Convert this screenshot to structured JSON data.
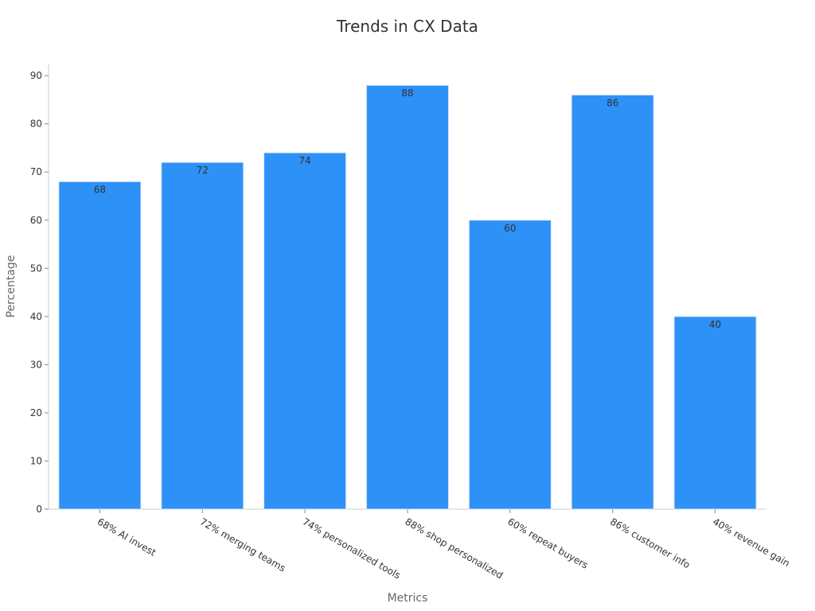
{
  "chart_data": {
    "type": "bar",
    "title": "Trends in CX Data",
    "x_label": "Metrics",
    "y_label": "Percentage",
    "categories": [
      "68% AI invest",
      "72% merging teams",
      "74% personalized tools",
      "88% shop personalized",
      "60% repeat buyers",
      "86% customer info",
      "40% revenue gain"
    ],
    "values": [
      68,
      72,
      74,
      88,
      60,
      86,
      40
    ],
    "color": "#2e91f8",
    "ylim": [
      0,
      92.5
    ],
    "yticks": [
      0,
      10,
      20,
      30,
      40,
      50,
      60,
      70,
      80,
      90
    ],
    "grid": false
  }
}
